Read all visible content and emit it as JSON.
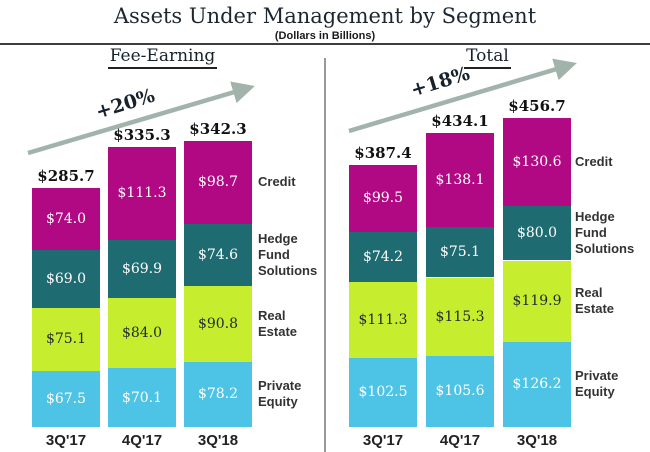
{
  "header": {
    "title": "Assets Under Management by Segment",
    "subtitle": "(Dollars in Billions)"
  },
  "chart_data": [
    {
      "type": "bar",
      "subtype": "stacked",
      "title": "Fee-Earning",
      "growth_label": "+20%",
      "currency_prefix": "$",
      "categories": [
        "3Q'17",
        "4Q'17",
        "3Q'18"
      ],
      "series": [
        {
          "name": "Private Equity",
          "values": [
            67.5,
            70.1,
            78.2
          ],
          "color": "#4dc3e6",
          "label_color": "#ffffff"
        },
        {
          "name": "Real Estate",
          "values": [
            75.1,
            84.0,
            90.8
          ],
          "color": "#c6ee2f",
          "label_color": "#1e2a33"
        },
        {
          "name": "Hedge Fund Solutions",
          "values": [
            69.0,
            69.9,
            74.6
          ],
          "color": "#1f6b72",
          "label_color": "#ffffff"
        },
        {
          "name": "Credit",
          "values": [
            74.0,
            111.3,
            98.7
          ],
          "color": "#b10884",
          "label_color": "#ffffff"
        }
      ],
      "totals": [
        285.7,
        335.3,
        342.3
      ],
      "legend_position": "right",
      "legend_entries": [
        "Credit",
        "Hedge Fund Solutions",
        "Real Estate",
        "Private Equity"
      ],
      "grid": false,
      "arrow_color": "#a2b3ab"
    },
    {
      "type": "bar",
      "subtype": "stacked",
      "title": "Total",
      "growth_label": "+18%",
      "currency_prefix": "$",
      "categories": [
        "3Q'17",
        "4Q'17",
        "3Q'18"
      ],
      "series": [
        {
          "name": "Private Equity",
          "values": [
            102.5,
            105.6,
            126.2
          ],
          "color": "#4dc3e6",
          "label_color": "#ffffff"
        },
        {
          "name": "Real Estate",
          "values": [
            111.3,
            115.3,
            119.9
          ],
          "color": "#c6ee2f",
          "label_color": "#1e2a33"
        },
        {
          "name": "Hedge Fund Solutions",
          "values": [
            74.2,
            75.1,
            80.0
          ],
          "color": "#1f6b72",
          "label_color": "#ffffff"
        },
        {
          "name": "Credit",
          "values": [
            99.5,
            138.1,
            130.6
          ],
          "color": "#b10884",
          "label_color": "#ffffff"
        }
      ],
      "totals": [
        387.4,
        434.1,
        456.7
      ],
      "legend_position": "right",
      "legend_entries": [
        "Credit",
        "Hedge Fund Solutions",
        "Real Estate",
        "Private Equity"
      ],
      "grid": false,
      "arrow_color": "#a2b3ab"
    }
  ]
}
